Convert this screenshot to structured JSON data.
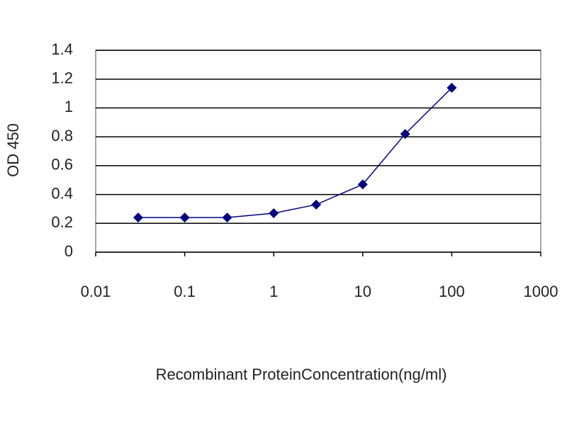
{
  "chart_data": {
    "type": "line",
    "x_label": "Recombinant ProteinConcentration(ng/ml)",
    "y_label": "OD 450",
    "x": [
      0.03,
      0.1,
      0.3,
      1,
      3,
      10,
      30,
      100
    ],
    "series": [
      {
        "name": "OD 450",
        "color": "#000080",
        "values": [
          0.24,
          0.24,
          0.24,
          0.27,
          0.33,
          0.47,
          0.82,
          1.14
        ]
      }
    ],
    "xscale": "log",
    "xlim": [
      0.01,
      1000
    ],
    "xticks": [
      0.01,
      0.1,
      1,
      10,
      100,
      1000
    ],
    "ylim": [
      0,
      1.4
    ],
    "yticks": [
      0,
      0.2,
      0.4,
      0.6,
      0.8,
      1,
      1.2,
      1.4
    ],
    "grid": true
  }
}
